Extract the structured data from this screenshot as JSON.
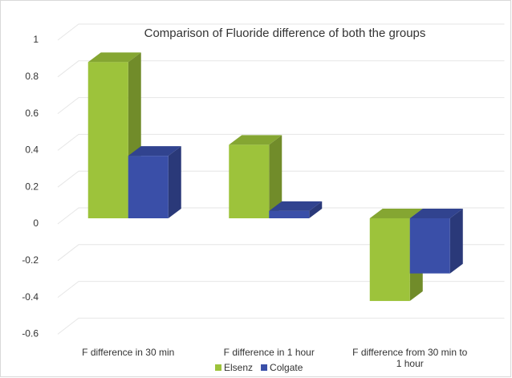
{
  "chart_data": {
    "type": "bar3d",
    "title": "Comparison of Fluoride difference of both the groups",
    "categories": [
      "F difference in 30 min",
      "F difference in 1 hour",
      "F difference from 30 min to 1 hour"
    ],
    "series": [
      {
        "name": "Elsenz",
        "color": "#9dc33b",
        "values": [
          0.85,
          0.4,
          -0.45
        ]
      },
      {
        "name": "Colgate",
        "color": "#3a4fa8",
        "values": [
          0.34,
          0.04,
          -0.3
        ]
      }
    ],
    "ylim": [
      -0.6,
      1
    ],
    "yticks": [
      -0.6,
      -0.4,
      -0.2,
      0,
      0.2,
      0.4,
      0.6,
      0.8,
      1
    ],
    "grid": true,
    "legend": "bottom"
  }
}
